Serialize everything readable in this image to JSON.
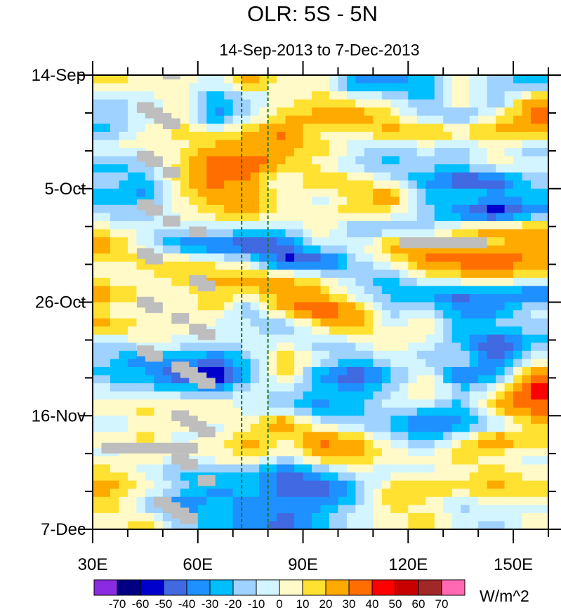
{
  "chart_data": {
    "type": "heatmap",
    "title": "OLR: 5S - 5N",
    "subtitle": "14-Sep-2013 to 7-Dec-2013",
    "xlabel": "",
    "ylabel": "",
    "xlim": [
      30,
      160
    ],
    "ylim_days": [
      0,
      84
    ],
    "x_ticks": [
      {
        "value": 30,
        "label": "30E"
      },
      {
        "value": 60,
        "label": "60E"
      },
      {
        "value": 90,
        "label": "90E"
      },
      {
        "value": 120,
        "label": "120E"
      },
      {
        "value": 150,
        "label": "150E"
      }
    ],
    "x_minor_step": 10,
    "y_ticks": [
      {
        "day": 0,
        "label": "14-Sep"
      },
      {
        "day": 21,
        "label": "5-Oct"
      },
      {
        "day": 42,
        "label": "26-Oct"
      },
      {
        "day": 63,
        "label": "16-Nov"
      },
      {
        "day": 84,
        "label": "7-Dec"
      }
    ],
    "y_minor_step": 7,
    "reference_lines_lon": [
      72.5,
      80
    ],
    "reference_line_color": "#1a7a1a",
    "colorbar": {
      "units": "W/m^2",
      "levels": [
        -70,
        -60,
        -50,
        -40,
        -30,
        -20,
        -10,
        0,
        10,
        20,
        30,
        40,
        50,
        60,
        70
      ],
      "colors": [
        "#8a2be2",
        "#000080",
        "#0000cd",
        "#4169e1",
        "#1e90ff",
        "#00bfff",
        "#a0d2ff",
        "#d2f5ff",
        "#fffac8",
        "#ffe132",
        "#ffaa00",
        "#ff6e00",
        "#ff0000",
        "#c80000",
        "#a02828",
        "#ff69b4"
      ]
    },
    "missing_color": "#bebebe",
    "grid_lon_centers": [
      35,
      45,
      55,
      65,
      75,
      85,
      95,
      105,
      115,
      125,
      135,
      145,
      155
    ],
    "grid_day_step": 3,
    "values": [
      [
        15,
        5,
        5,
        -5,
        25,
        5,
        5,
        -35,
        -35,
        -25,
        5,
        -15,
        -25
      ],
      [
        -15,
        -5,
        5,
        -30,
        -15,
        5,
        15,
        5,
        -5,
        -25,
        15,
        -25,
        25
      ],
      [
        -15,
        -5,
        5,
        -35,
        -5,
        15,
        25,
        30,
        15,
        -15,
        -25,
        5,
        35
      ],
      [
        -25,
        5,
        15,
        5,
        25,
        35,
        5,
        5,
        25,
        25,
        15,
        25,
        25
      ],
      [
        5,
        5,
        5,
        25,
        25,
        25,
        15,
        -5,
        -15,
        -5,
        -15,
        5,
        -15
      ],
      [
        -25,
        -15,
        15,
        35,
        45,
        15,
        5,
        -15,
        -25,
        -15,
        -15,
        5,
        -5
      ],
      [
        -15,
        -25,
        15,
        35,
        25,
        -5,
        25,
        15,
        -5,
        -30,
        -55,
        -50,
        -15
      ],
      [
        -25,
        -35,
        5,
        25,
        25,
        5,
        -5,
        15,
        35,
        -25,
        -15,
        -25,
        -25
      ],
      [
        -15,
        -15,
        5,
        15,
        25,
        5,
        5,
        15,
        5,
        -15,
        -45,
        -65,
        -35
      ],
      [
        5,
        -5,
        -15,
        -5,
        -15,
        -15,
        15,
        -25,
        -15,
        -15,
        15,
        25,
        30
      ],
      [
        25,
        -5,
        -35,
        -45,
        -55,
        -45,
        -5,
        -5,
        25,
        25,
        25,
        15,
        25
      ],
      [
        5,
        15,
        15,
        5,
        -5,
        -55,
        -55,
        -15,
        5,
        35,
        35,
        40,
        30
      ],
      [
        5,
        5,
        15,
        25,
        25,
        25,
        5,
        -15,
        -25,
        5,
        15,
        25,
        5
      ],
      [
        25,
        5,
        5,
        15,
        15,
        25,
        25,
        -5,
        -25,
        -35,
        -45,
        -35,
        -45
      ],
      [
        5,
        5,
        5,
        15,
        -25,
        25,
        45,
        25,
        -15,
        -5,
        -35,
        -35,
        -5
      ],
      [
        25,
        5,
        5,
        -5,
        -5,
        -25,
        15,
        25,
        -5,
        15,
        -25,
        -15,
        -15
      ],
      [
        -15,
        5,
        -5,
        -5,
        -5,
        -5,
        -15,
        -5,
        15,
        -5,
        -25,
        -55,
        -25
      ],
      [
        -15,
        -45,
        -25,
        -45,
        -15,
        25,
        -5,
        -25,
        -5,
        -15,
        -5,
        -45,
        -5
      ],
      [
        -25,
        -25,
        -55,
        -65,
        -25,
        15,
        -35,
        -55,
        -25,
        5,
        -45,
        -35,
        35
      ],
      [
        -5,
        -15,
        -15,
        -25,
        -5,
        -15,
        -25,
        -25,
        -15,
        15,
        -15,
        5,
        45
      ],
      [
        5,
        15,
        5,
        15,
        -5,
        -15,
        -35,
        -25,
        -5,
        -15,
        -25,
        25,
        35
      ],
      [
        -15,
        5,
        5,
        -5,
        5,
        35,
        -5,
        -15,
        -25,
        -45,
        -35,
        -15,
        15
      ],
      [
        5,
        15,
        -5,
        5,
        25,
        5,
        35,
        25,
        -5,
        -25,
        5,
        35,
        15
      ],
      [
        -5,
        5,
        5,
        5,
        15,
        -5,
        25,
        25,
        5,
        5,
        15,
        5,
        -5
      ],
      [
        15,
        -5,
        -25,
        -15,
        -25,
        -45,
        -25,
        -5,
        -5,
        -5,
        5,
        15,
        5
      ],
      [
        25,
        5,
        -15,
        -35,
        -25,
        -45,
        -55,
        -25,
        15,
        25,
        15,
        25,
        15
      ],
      [
        15,
        -15,
        -45,
        -25,
        -35,
        -35,
        -35,
        -15,
        15,
        5,
        -15,
        5,
        -5
      ],
      [
        5,
        15,
        -15,
        -25,
        -35,
        -45,
        -25,
        -5,
        5,
        15,
        -5,
        -15,
        5
      ]
    ],
    "missing_regions": [
      [
        50,
        55,
        0,
        0.8
      ],
      [
        42.6,
        47.5,
        5,
        7
      ],
      [
        45,
        50,
        6,
        8
      ],
      [
        47.5,
        52.5,
        7,
        9
      ],
      [
        50,
        55,
        8,
        10
      ],
      [
        42.6,
        47.5,
        14,
        16
      ],
      [
        45,
        50,
        15,
        17
      ],
      [
        50,
        55,
        17,
        19
      ],
      [
        42.6,
        47.5,
        23,
        25
      ],
      [
        45,
        50,
        24,
        26
      ],
      [
        50,
        55,
        26,
        28
      ],
      [
        57.5,
        62.5,
        28,
        30
      ],
      [
        42.6,
        47.5,
        32,
        34
      ],
      [
        45,
        50,
        33,
        35
      ],
      [
        57.5,
        62.5,
        37,
        39
      ],
      [
        60,
        65,
        38,
        40
      ],
      [
        42.6,
        47.5,
        41,
        43
      ],
      [
        45,
        50,
        42,
        44
      ],
      [
        52.5,
        57.5,
        44,
        46
      ],
      [
        57.5,
        62.5,
        46,
        48
      ],
      [
        60,
        65,
        47,
        49
      ],
      [
        42.6,
        47.5,
        50,
        52
      ],
      [
        45,
        50,
        51,
        53
      ],
      [
        52.5,
        57.5,
        53,
        55
      ],
      [
        55,
        60,
        54,
        56
      ],
      [
        57.5,
        62.5,
        55,
        57
      ],
      [
        60,
        65,
        56,
        58
      ],
      [
        52.5,
        57.5,
        62,
        64
      ],
      [
        55,
        60,
        63,
        65
      ],
      [
        57.5,
        62.5,
        64,
        66
      ],
      [
        60,
        65,
        65,
        67
      ],
      [
        32.5,
        60,
        68,
        70
      ],
      [
        52.5,
        57.5,
        70,
        72
      ],
      [
        55,
        60,
        71,
        73
      ],
      [
        60,
        65,
        74,
        76
      ],
      [
        47.5,
        52.5,
        78,
        80
      ],
      [
        50,
        55,
        79,
        81
      ],
      [
        52.5,
        57.5,
        80,
        82
      ],
      [
        55,
        60,
        81,
        83
      ],
      [
        117.5,
        142.5,
        30,
        32
      ]
    ]
  }
}
